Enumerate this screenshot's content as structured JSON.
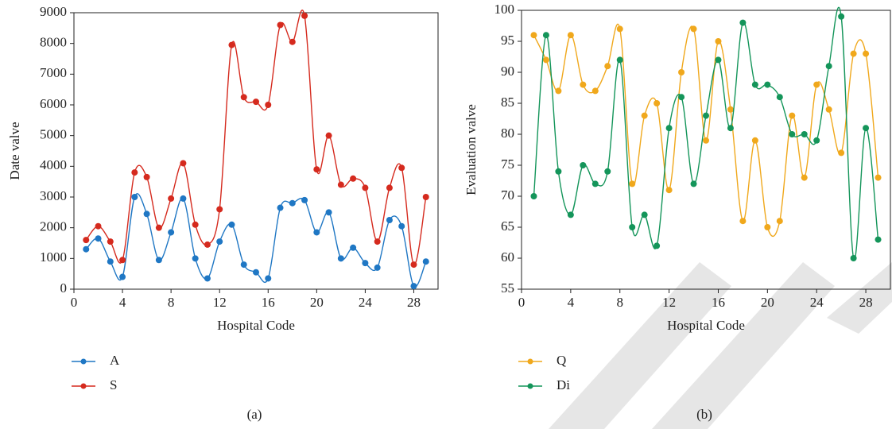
{
  "chart_data": [
    {
      "type": "line",
      "caption": "(a)",
      "xlabel": "Hospital Code",
      "ylabel": "Date valve",
      "x": [
        1,
        2,
        3,
        4,
        5,
        6,
        7,
        8,
        9,
        10,
        11,
        12,
        13,
        14,
        15,
        16,
        17,
        18,
        19,
        20,
        21,
        22,
        23,
        24,
        25,
        26,
        27,
        28,
        29
      ],
      "series": [
        {
          "name": "A",
          "color": "#1f77c4",
          "values": [
            1300,
            1650,
            900,
            400,
            3000,
            2450,
            950,
            1850,
            2950,
            1000,
            350,
            1550,
            2100,
            800,
            550,
            350,
            2650,
            2800,
            2900,
            1850,
            2500,
            1000,
            1350,
            850,
            700,
            2250,
            2050,
            100,
            900
          ]
        },
        {
          "name": "S",
          "color": "#d52a1e",
          "values": [
            1600,
            2050,
            1550,
            950,
            3800,
            3650,
            2000,
            2950,
            4100,
            2100,
            1450,
            2600,
            7950,
            6250,
            6100,
            6000,
            8600,
            8050,
            8900,
            3900,
            5000,
            3400,
            3600,
            3300,
            1550,
            3300,
            3950,
            800,
            3000
          ]
        }
      ],
      "xlim": [
        0,
        30
      ],
      "xticks": [
        0,
        4,
        8,
        12,
        16,
        20,
        24,
        28
      ],
      "ylim": [
        0,
        9000
      ],
      "yticks": [
        0,
        1000,
        2000,
        3000,
        4000,
        5000,
        6000,
        7000,
        8000,
        9000
      ],
      "smooth": true
    },
    {
      "type": "line",
      "caption": "(b)",
      "xlabel": "Hospital Code",
      "ylabel": "Evaluation valve",
      "x": [
        1,
        2,
        3,
        4,
        5,
        6,
        7,
        8,
        9,
        10,
        11,
        12,
        13,
        14,
        15,
        16,
        17,
        18,
        19,
        20,
        21,
        22,
        23,
        24,
        25,
        26,
        27,
        28,
        29
      ],
      "series": [
        {
          "name": "Q",
          "color": "#f0a81c",
          "values": [
            96,
            92,
            87,
            96,
            88,
            87,
            91,
            97,
            72,
            83,
            85,
            71,
            90,
            97,
            79,
            95,
            84,
            66,
            79,
            65,
            66,
            83,
            73,
            88,
            84,
            77,
            93,
            93,
            73
          ]
        },
        {
          "name": "Di",
          "color": "#14955a",
          "values": [
            70,
            96,
            74,
            67,
            75,
            72,
            74,
            92,
            65,
            67,
            62,
            81,
            86,
            72,
            83,
            92,
            81,
            98,
            88,
            88,
            86,
            80,
            80,
            79,
            91,
            99,
            60,
            81,
            63
          ]
        }
      ],
      "xlim": [
        0,
        30
      ],
      "xticks": [
        0,
        4,
        8,
        12,
        16,
        20,
        24,
        28
      ],
      "ylim": [
        55,
        100
      ],
      "yticks": [
        55,
        60,
        65,
        70,
        75,
        80,
        85,
        90,
        95,
        100
      ],
      "smooth": true
    }
  ]
}
